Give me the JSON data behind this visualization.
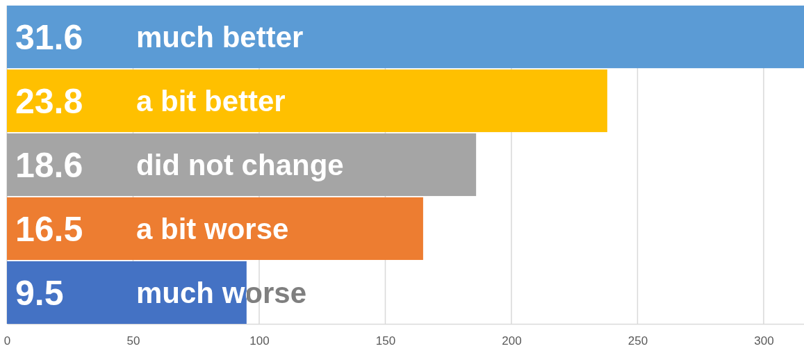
{
  "chart_data": {
    "type": "bar",
    "orientation": "horizontal",
    "categories": [
      "much better",
      "a bit better",
      "did not change",
      "a bit worse",
      "much worse"
    ],
    "values": [
      316,
      238,
      186,
      165,
      95
    ],
    "annotations": [
      "31.6",
      "23.8",
      "18.6",
      "16.5",
      "9.5"
    ],
    "colors": [
      "#5b9bd5",
      "#ffc000",
      "#a5a5a5",
      "#ed7d31",
      "#4472c4"
    ],
    "xlim": [
      0,
      316
    ],
    "xticks": [
      0,
      50,
      100,
      150,
      200,
      250,
      300
    ],
    "grid": "x"
  }
}
